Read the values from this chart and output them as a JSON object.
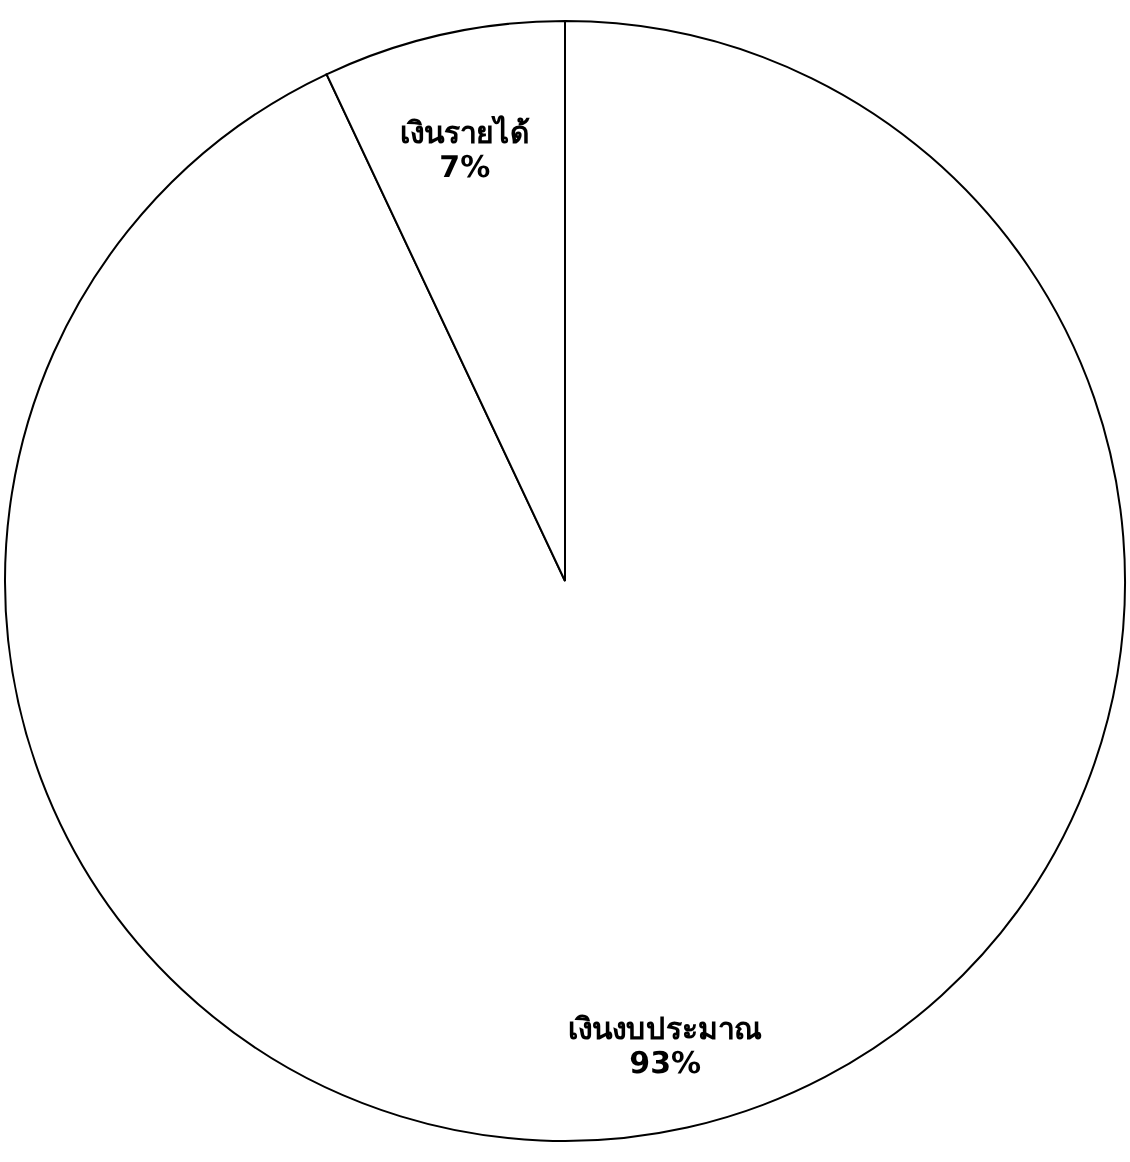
{
  "chart_data": {
    "type": "pie",
    "categories": [
      "เงินงบประมาณ",
      "เงินรายได้"
    ],
    "values": [
      93,
      7
    ],
    "colors": [
      "#ffffff",
      "#ffffff"
    ],
    "value_labels": [
      "93%",
      "7%"
    ]
  }
}
